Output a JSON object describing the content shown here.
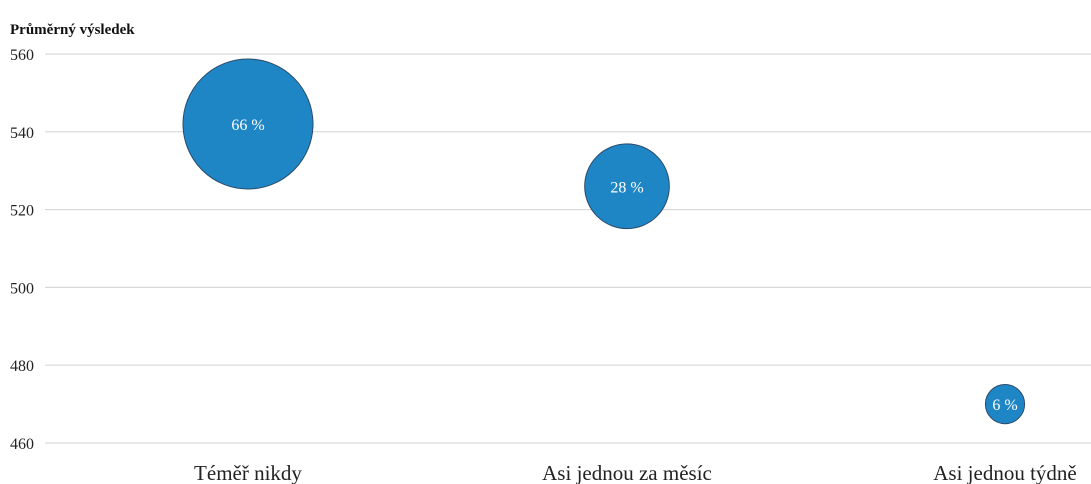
{
  "chart_data": {
    "type": "scatter",
    "ylabel": "Průměrný výsledek",
    "ylim": [
      460,
      560
    ],
    "yticks": [
      560,
      540,
      520,
      500,
      480,
      460
    ],
    "grid": true,
    "categories": [
      "Téměř nikdy",
      "Asi jednou za měsíc",
      "Asi jednou týdně"
    ],
    "points": [
      {
        "category": "Téměř nikdy",
        "y": 542,
        "share": 66,
        "label": "66 %"
      },
      {
        "category": "Asi jednou za měsíc",
        "y": 526,
        "share": 28,
        "label": "28 %"
      },
      {
        "category": "Asi jednou týdně",
        "y": 470,
        "share": 6,
        "label": "6 %"
      }
    ],
    "bubble_color": "#1f86c6"
  }
}
